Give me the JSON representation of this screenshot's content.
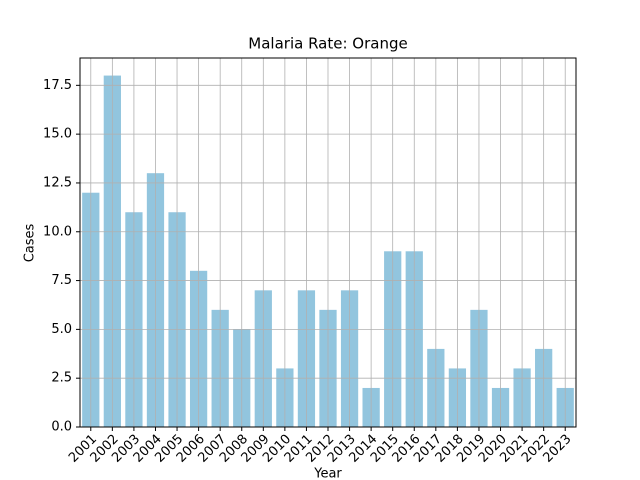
{
  "chart_data": {
    "type": "bar",
    "title": "Malaria Rate: Orange",
    "xlabel": "Year",
    "ylabel": "Cases",
    "categories": [
      "2001",
      "2002",
      "2003",
      "2004",
      "2005",
      "2006",
      "2007",
      "2008",
      "2009",
      "2010",
      "2011",
      "2012",
      "2013",
      "2014",
      "2015",
      "2016",
      "2017",
      "2018",
      "2019",
      "2020",
      "2021",
      "2022",
      "2023"
    ],
    "values": [
      12,
      18,
      11,
      13,
      11,
      8,
      6,
      5,
      7,
      3,
      7,
      6,
      7,
      2,
      9,
      9,
      4,
      3,
      6,
      2,
      3,
      4,
      2
    ],
    "color": "#92c5de",
    "ylim": [
      0,
      18.9
    ],
    "yticks": [
      {
        "value": 0,
        "label": "0.0"
      },
      2.5,
      {
        "value": 5,
        "label": "5.0"
      },
      7.5,
      {
        "value": 10,
        "label": "10.0"
      },
      12.5,
      {
        "value": 15,
        "label": "15.0"
      },
      17.5
    ],
    "grid": true
  }
}
